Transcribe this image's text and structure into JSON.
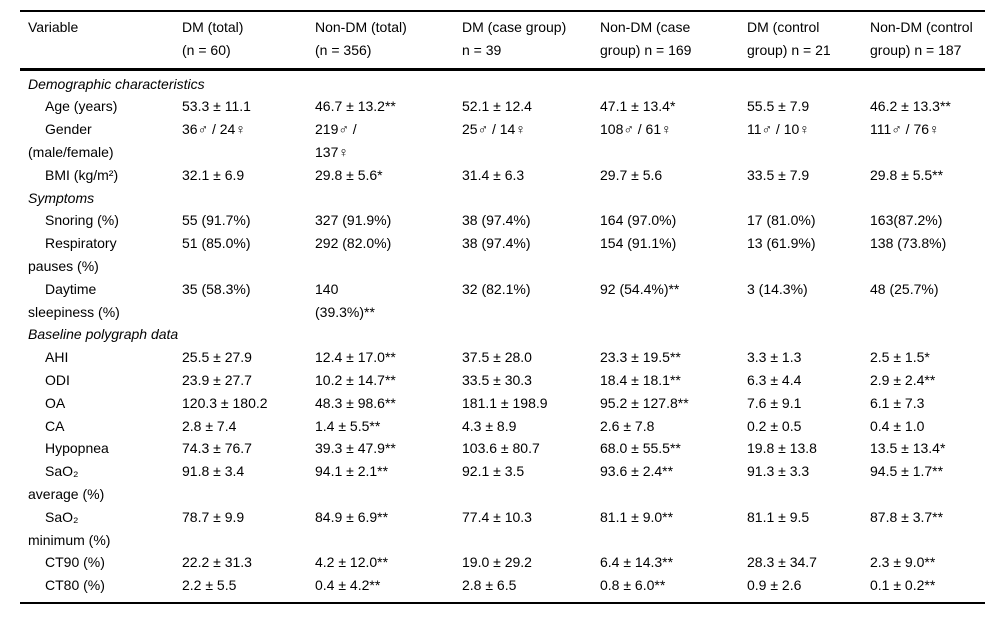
{
  "table": {
    "columns": [
      {
        "label": "Variable"
      },
      {
        "label": "DM (total)\n(n = 60)"
      },
      {
        "label": "Non-DM (total)\n(n = 356)"
      },
      {
        "label": "DM (case group)\nn = 39"
      },
      {
        "label": "Non-DM (case\ngroup) n = 169"
      },
      {
        "label": "DM (control\ngroup) n = 21"
      },
      {
        "label": "Non-DM (control\ngroup) n = 187"
      }
    ],
    "rows": [
      {
        "type": "section",
        "label": "Demographic characteristics"
      },
      {
        "type": "data",
        "label": "Age (years)",
        "values": [
          "53.3 ± 11.1",
          "46.7 ± 13.2**",
          "52.1 ± 12.4",
          "47.1 ± 13.4*",
          "55.5 ± 7.9",
          "46.2 ± 13.3**"
        ]
      },
      {
        "type": "data",
        "label": "Gender\n(male/female)",
        "values": [
          "36♂ / 24♀",
          "219♂ /\n137♀",
          "25♂ / 14♀",
          "108♂ / 61♀",
          "11♂ / 10♀",
          "111♂ / 76♀"
        ]
      },
      {
        "type": "data",
        "label": "BMI (kg/m²)",
        "values": [
          "32.1 ± 6.9",
          "29.8 ± 5.6*",
          "31.4 ± 6.3",
          "29.7 ± 5.6",
          "33.5 ± 7.9",
          "29.8 ± 5.5**"
        ]
      },
      {
        "type": "section",
        "label": "Symptoms"
      },
      {
        "type": "data",
        "label": "Snoring (%)",
        "values": [
          "55 (91.7%)",
          "327 (91.9%)",
          "38 (97.4%)",
          "164 (97.0%)",
          "17 (81.0%)",
          "163(87.2%)"
        ]
      },
      {
        "type": "data",
        "label": "Respiratory\npauses (%)",
        "values": [
          "51 (85.0%)",
          "292 (82.0%)",
          "38 (97.4%)",
          "154 (91.1%)",
          "13 (61.9%)",
          "138 (73.8%)"
        ]
      },
      {
        "type": "data",
        "label": "Daytime\nsleepiness (%)",
        "values": [
          "35 (58.3%)",
          "140\n(39.3%)**",
          "32 (82.1%)",
          "92 (54.4%)**",
          "3 (14.3%)",
          "48 (25.7%)"
        ]
      },
      {
        "type": "section",
        "label": "Baseline polygraph data"
      },
      {
        "type": "data",
        "label": "AHI",
        "values": [
          "25.5 ± 27.9",
          "12.4 ± 17.0**",
          "37.5 ± 28.0",
          "23.3 ± 19.5**",
          "3.3 ± 1.3",
          "2.5 ± 1.5*"
        ]
      },
      {
        "type": "data",
        "label": "ODI",
        "values": [
          "23.9 ± 27.7",
          "10.2 ± 14.7**",
          "33.5 ± 30.3",
          "18.4 ± 18.1**",
          "6.3 ± 4.4",
          "2.9 ± 2.4**"
        ]
      },
      {
        "type": "data",
        "label": "OA",
        "values": [
          "120.3 ± 180.2",
          "48.3 ± 98.6**",
          "181.1 ± 198.9",
          "95.2 ± 127.8**",
          "7.6 ± 9.1",
          "6.1 ± 7.3"
        ]
      },
      {
        "type": "data",
        "label": "CA",
        "values": [
          "2.8 ± 7.4",
          "1.4 ± 5.5**",
          "4.3 ± 8.9",
          "2.6 ± 7.8",
          "0.2 ± 0.5",
          "0.4 ± 1.0"
        ]
      },
      {
        "type": "data",
        "label": "Hypopnea",
        "values": [
          "74.3 ± 76.7",
          "39.3 ± 47.9**",
          "103.6 ± 80.7",
          "68.0 ± 55.5**",
          "19.8 ± 13.8",
          "13.5 ± 13.4*"
        ]
      },
      {
        "type": "data",
        "label": "SaO₂\naverage (%)",
        "values": [
          "91.8 ± 3.4",
          "94.1 ± 2.1**",
          "92.1 ± 3.5",
          "93.6 ± 2.4**",
          "91.3 ± 3.3",
          "94.5 ± 1.7**"
        ]
      },
      {
        "type": "data",
        "label": "SaO₂\nminimum (%)",
        "values": [
          "78.7 ± 9.9",
          "84.9 ± 6.9**",
          "77.4 ± 10.3",
          "81.1 ± 9.0**",
          "81.1 ± 9.5",
          "87.8 ± 3.7**"
        ]
      },
      {
        "type": "data",
        "label": "CT90 (%)",
        "values": [
          "22.2 ± 31.3",
          "4.2 ± 12.0**",
          "19.0 ± 29.2",
          "6.4 ± 14.3**",
          "28.3 ± 34.7",
          "2.3 ± 9.0**"
        ]
      },
      {
        "type": "data",
        "label": "CT80 (%)",
        "values": [
          "2.2 ± 5.5",
          "0.4 ± 4.2**",
          "2.8 ± 6.5",
          "0.8 ± 6.0**",
          "0.9 ± 2.6",
          "0.1 ± 0.2**"
        ]
      }
    ]
  }
}
